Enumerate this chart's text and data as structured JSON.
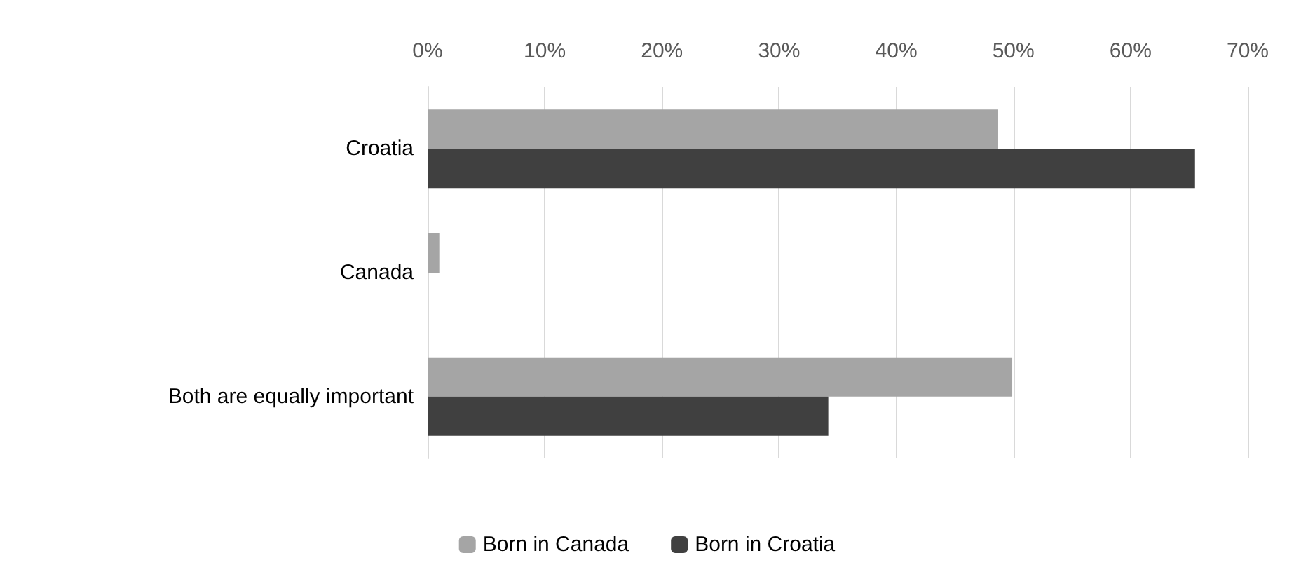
{
  "chart_data": {
    "type": "bar",
    "orientation": "horizontal",
    "categories": [
      "Croatia",
      "Canada",
      "Both are equally important"
    ],
    "series": [
      {
        "name": "Born in Canada",
        "color": "#a5a5a5",
        "values": [
          48.7,
          1,
          49.9
        ]
      },
      {
        "name": "Born in Croatia",
        "color": "#404040",
        "values": [
          65.5,
          0,
          34.2
        ]
      }
    ],
    "xlim": [
      0,
      70
    ],
    "xticks": [
      {
        "value": 0,
        "label": "0%"
      },
      {
        "value": 10,
        "label": "10%"
      },
      {
        "value": 20,
        "label": "20%"
      },
      {
        "value": 30,
        "label": "30%"
      },
      {
        "value": 40,
        "label": "40%"
      },
      {
        "value": 50,
        "label": "50%"
      },
      {
        "value": 60,
        "label": "60%"
      },
      {
        "value": 70,
        "label": "70%"
      }
    ],
    "grid": "x",
    "legend": "bottom"
  }
}
